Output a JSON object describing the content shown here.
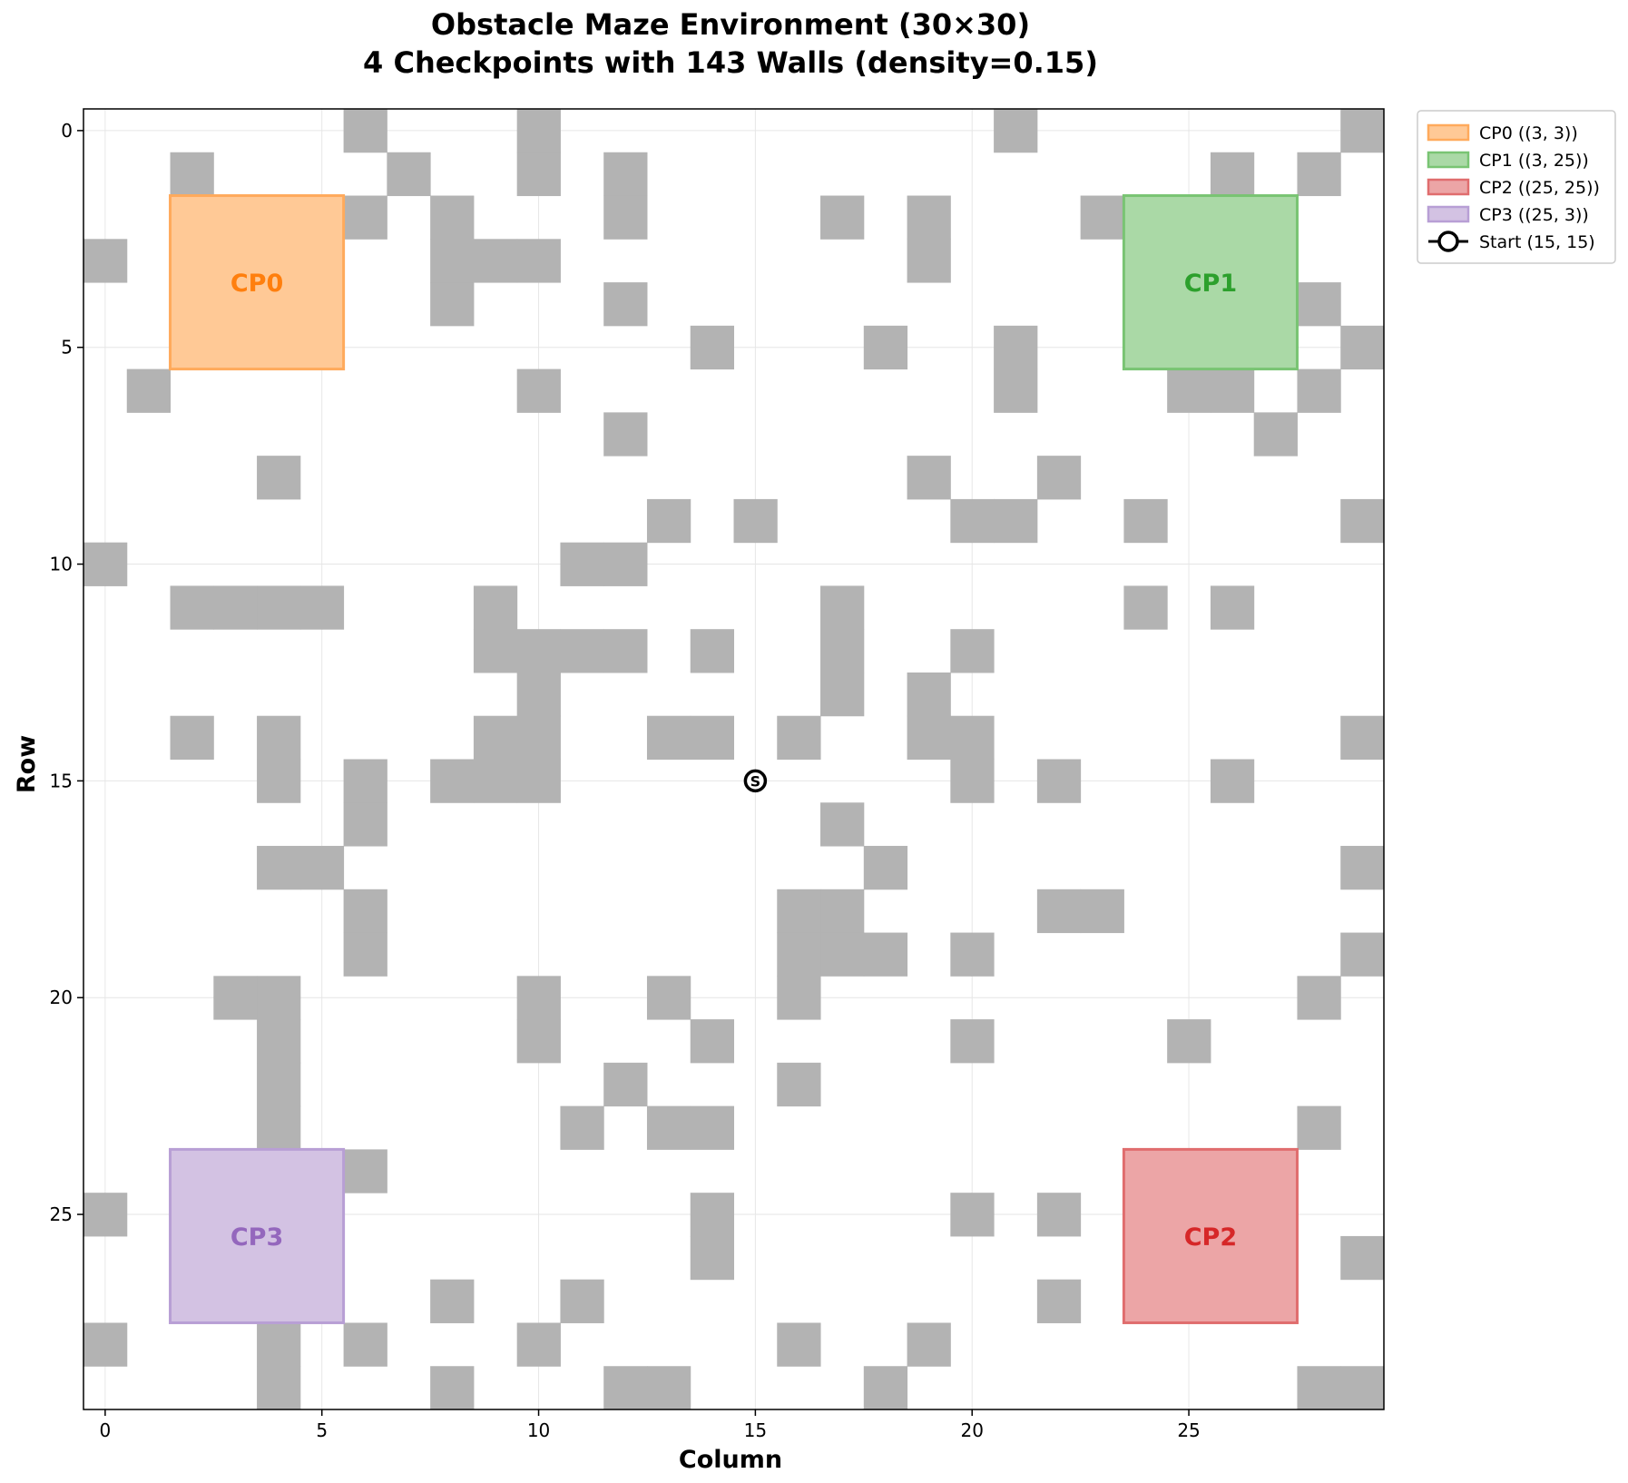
{
  "chart_data": {
    "type": "heatmap",
    "title_line1": "Obstacle Maze Environment (30×30)",
    "title_line2": "4 Checkpoints with 143 Walls (density=0.15)",
    "xlabel": "Column",
    "ylabel": "Row",
    "grid_size": 30,
    "xticks": [
      0,
      5,
      10,
      15,
      20,
      25
    ],
    "yticks": [
      0,
      5,
      10,
      15,
      20,
      25
    ],
    "xlim": [
      -0.5,
      29.5
    ],
    "ylim": [
      29.5,
      -0.5
    ],
    "grid": true,
    "legend_position": "outside-top-right",
    "wall_color": "#b3b3b3",
    "walls": [
      [
        0,
        6
      ],
      [
        0,
        10
      ],
      [
        0,
        21
      ],
      [
        0,
        29
      ],
      [
        1,
        2
      ],
      [
        1,
        7
      ],
      [
        1,
        10
      ],
      [
        1,
        12
      ],
      [
        1,
        26
      ],
      [
        1,
        28
      ],
      [
        2,
        6
      ],
      [
        2,
        8
      ],
      [
        2,
        12
      ],
      [
        2,
        17
      ],
      [
        2,
        19
      ],
      [
        2,
        23
      ],
      [
        3,
        0
      ],
      [
        3,
        8
      ],
      [
        3,
        9
      ],
      [
        3,
        10
      ],
      [
        3,
        19
      ],
      [
        4,
        8
      ],
      [
        4,
        12
      ],
      [
        4,
        28
      ],
      [
        5,
        14
      ],
      [
        5,
        18
      ],
      [
        5,
        21
      ],
      [
        5,
        29
      ],
      [
        6,
        1
      ],
      [
        6,
        10
      ],
      [
        6,
        21
      ],
      [
        6,
        25
      ],
      [
        6,
        26
      ],
      [
        6,
        28
      ],
      [
        7,
        12
      ],
      [
        7,
        27
      ],
      [
        8,
        4
      ],
      [
        8,
        19
      ],
      [
        8,
        22
      ],
      [
        9,
        13
      ],
      [
        9,
        15
      ],
      [
        9,
        20
      ],
      [
        9,
        21
      ],
      [
        9,
        24
      ],
      [
        9,
        29
      ],
      [
        10,
        0
      ],
      [
        10,
        11
      ],
      [
        10,
        12
      ],
      [
        11,
        2
      ],
      [
        11,
        3
      ],
      [
        11,
        4
      ],
      [
        11,
        5
      ],
      [
        11,
        9
      ],
      [
        11,
        17
      ],
      [
        11,
        24
      ],
      [
        11,
        26
      ],
      [
        12,
        9
      ],
      [
        12,
        10
      ],
      [
        12,
        11
      ],
      [
        12,
        12
      ],
      [
        12,
        14
      ],
      [
        12,
        17
      ],
      [
        12,
        20
      ],
      [
        13,
        10
      ],
      [
        13,
        17
      ],
      [
        13,
        19
      ],
      [
        14,
        2
      ],
      [
        14,
        4
      ],
      [
        14,
        9
      ],
      [
        14,
        10
      ],
      [
        14,
        13
      ],
      [
        14,
        14
      ],
      [
        14,
        16
      ],
      [
        14,
        19
      ],
      [
        14,
        20
      ],
      [
        14,
        29
      ],
      [
        15,
        4
      ],
      [
        15,
        6
      ],
      [
        15,
        8
      ],
      [
        15,
        9
      ],
      [
        15,
        10
      ],
      [
        15,
        20
      ],
      [
        15,
        22
      ],
      [
        15,
        26
      ],
      [
        16,
        6
      ],
      [
        16,
        17
      ],
      [
        17,
        4
      ],
      [
        17,
        5
      ],
      [
        17,
        18
      ],
      [
        17,
        29
      ],
      [
        18,
        6
      ],
      [
        18,
        16
      ],
      [
        18,
        17
      ],
      [
        18,
        22
      ],
      [
        18,
        23
      ],
      [
        19,
        6
      ],
      [
        19,
        16
      ],
      [
        19,
        17
      ],
      [
        19,
        18
      ],
      [
        19,
        20
      ],
      [
        19,
        29
      ],
      [
        20,
        3
      ],
      [
        20,
        4
      ],
      [
        20,
        10
      ],
      [
        20,
        13
      ],
      [
        20,
        16
      ],
      [
        20,
        28
      ],
      [
        21,
        4
      ],
      [
        21,
        10
      ],
      [
        21,
        14
      ],
      [
        21,
        20
      ],
      [
        21,
        25
      ],
      [
        22,
        4
      ],
      [
        22,
        12
      ],
      [
        22,
        16
      ],
      [
        23,
        4
      ],
      [
        23,
        11
      ],
      [
        23,
        13
      ],
      [
        23,
        14
      ],
      [
        23,
        28
      ],
      [
        24,
        6
      ],
      [
        25,
        0
      ],
      [
        25,
        14
      ],
      [
        25,
        20
      ],
      [
        25,
        22
      ],
      [
        26,
        14
      ],
      [
        26,
        29
      ],
      [
        27,
        8
      ],
      [
        27,
        11
      ],
      [
        27,
        22
      ],
      [
        28,
        0
      ],
      [
        28,
        4
      ],
      [
        28,
        6
      ],
      [
        28,
        10
      ],
      [
        28,
        16
      ],
      [
        28,
        19
      ],
      [
        29,
        4
      ],
      [
        29,
        8
      ],
      [
        29,
        12
      ],
      [
        29,
        13
      ],
      [
        29,
        18
      ],
      [
        29,
        28
      ],
      [
        29,
        29
      ]
    ],
    "checkpoints": [
      {
        "id": "CP0",
        "label": "CP0",
        "legend": "CP0 ((3, 3))",
        "row": 3,
        "col": 3,
        "size": 4,
        "fill": "#ffc996",
        "edge": "#ffaa5c",
        "text_color": "#ff7f0e"
      },
      {
        "id": "CP1",
        "label": "CP1",
        "legend": "CP1 ((3, 25))",
        "row": 3,
        "col": 25,
        "size": 4,
        "fill": "#aad9a6",
        "edge": "#79c473",
        "text_color": "#2ca02c"
      },
      {
        "id": "CP2",
        "label": "CP2",
        "legend": "CP2 ((25, 25))",
        "row": 25,
        "col": 25,
        "size": 4,
        "fill": "#eca5a6",
        "edge": "#e06d6e",
        "text_color": "#d62728"
      },
      {
        "id": "CP3",
        "label": "CP3",
        "legend": "CP3 ((25, 3))",
        "row": 25,
        "col": 3,
        "size": 4,
        "fill": "#d3c2e3",
        "edge": "#b89fd5",
        "text_color": "#9467bd"
      }
    ],
    "start": {
      "label": "S",
      "legend": "Start (15, 15)",
      "row": 15,
      "col": 15
    }
  }
}
